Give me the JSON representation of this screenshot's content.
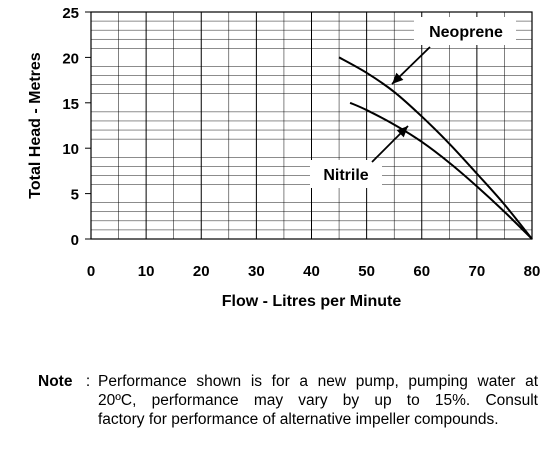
{
  "chart_data": {
    "type": "line",
    "xlabel": "Flow - Litres per Minute",
    "ylabel": "Total Head - Metres",
    "xlim": [
      0,
      80
    ],
    "ylim": [
      0,
      25
    ],
    "x_ticks": [
      "0",
      "10",
      "20",
      "30",
      "40",
      "50",
      "60",
      "70",
      "80"
    ],
    "y_ticks": [
      "0",
      "5",
      "10",
      "15",
      "20",
      "25"
    ],
    "grid": "vertical major and minor lines, horizontal minor lines",
    "series": [
      {
        "name": "Neoprene",
        "x": [
          45,
          50,
          55,
          60,
          65,
          70,
          75,
          80
        ],
        "y": [
          20,
          18.3,
          16.2,
          13.5,
          10.5,
          7.2,
          3.8,
          0
        ]
      },
      {
        "name": "Nitrile",
        "x": [
          47,
          50,
          55,
          60,
          65,
          70,
          75,
          80
        ],
        "y": [
          15,
          14.2,
          12.6,
          10.7,
          8.4,
          5.8,
          3.0,
          0
        ]
      }
    ]
  },
  "note": {
    "label": "Note",
    "separator": ":",
    "lines": [
      "Performance shown is for a new pump, pumping water at",
      "20ºC, performance may vary by up to 15%.    Consult",
      "factory for performance of alternative impeller compounds."
    ]
  },
  "colors": {
    "line": "#000000",
    "grid": "#000000",
    "background": "#ffffff"
  }
}
